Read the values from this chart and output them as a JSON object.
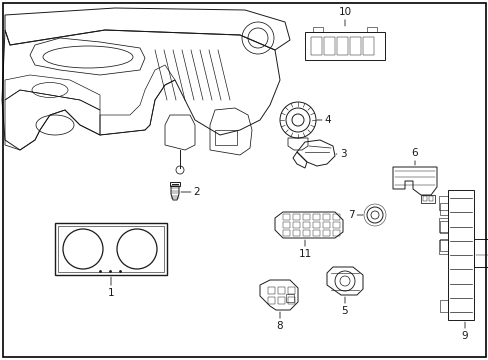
{
  "background_color": "#ffffff",
  "line_color": "#1a1a1a",
  "figure_width": 4.89,
  "figure_height": 3.6,
  "dpi": 100,
  "border_color": "#000000",
  "lw": 0.7
}
